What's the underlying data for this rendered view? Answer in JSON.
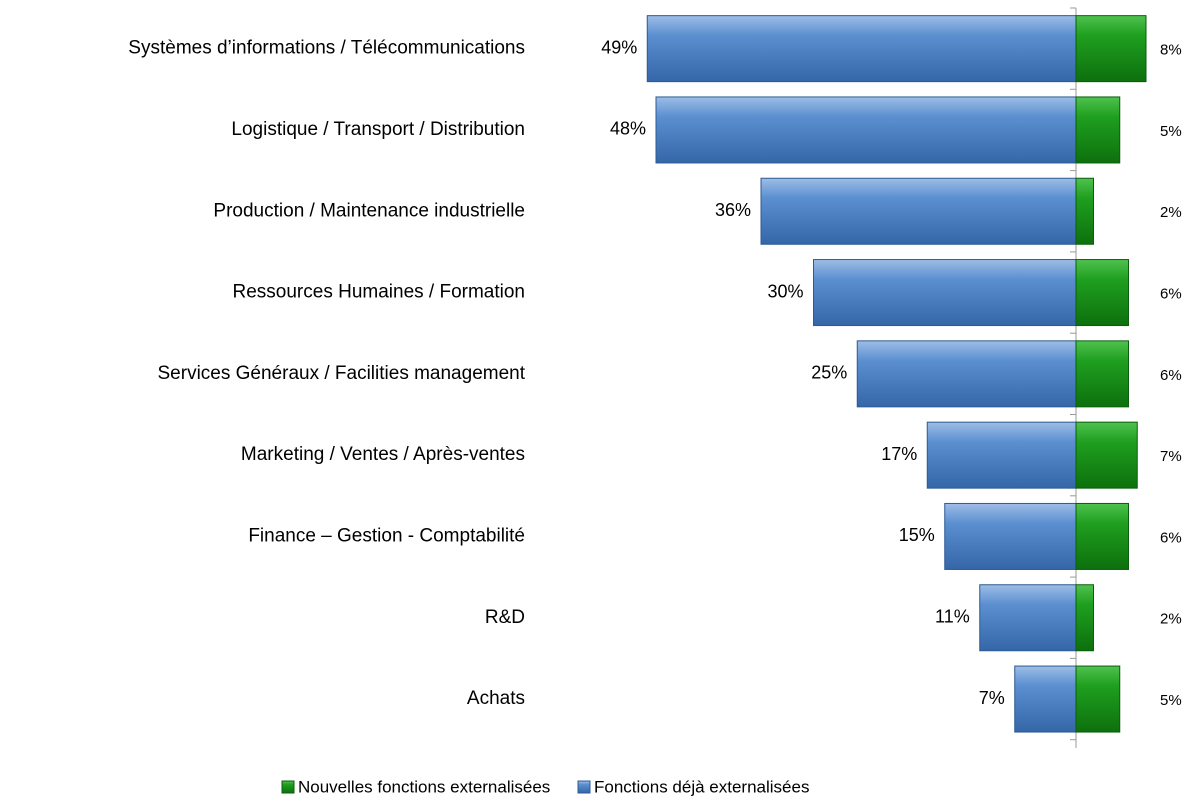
{
  "chart_data": {
    "type": "bar",
    "categories": [
      "Systèmes d’informations / Télécommunications",
      "Logistique / Transport / Distribution",
      "Production / Maintenance industrielle",
      "Ressources Humaines / Formation",
      "Services Généraux / Facilities management",
      "Marketing / Ventes / Après-ventes",
      "Finance – Gestion - Comptabilité",
      "R&D",
      "Achats"
    ],
    "series": [
      {
        "name": "Fonctions déjà externalisées",
        "color": "#4f81bd",
        "values": [
          49,
          48,
          36,
          30,
          25,
          17,
          15,
          11,
          7
        ],
        "value_labels": [
          "49%",
          "48%",
          "36%",
          "30%",
          "25%",
          "17%",
          "15%",
          "11%",
          "7%"
        ]
      },
      {
        "name": "Nouvelles fonctions externalisées",
        "color": "#1f9a1f",
        "values": [
          8,
          5,
          2,
          6,
          6,
          7,
          6,
          2,
          5
        ],
        "value_labels": [
          "8%",
          "5%",
          "2%",
          "6%",
          "6%",
          "7%",
          "6%",
          "2%",
          "5%"
        ]
      }
    ]
  }
}
